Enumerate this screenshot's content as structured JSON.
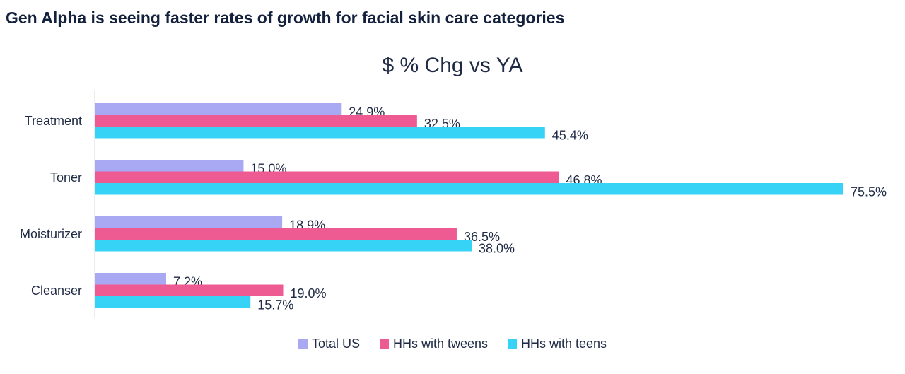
{
  "headline": "Gen Alpha is seeing faster rates of growth for facial skin care categories",
  "chart_data": {
    "type": "bar",
    "orientation": "horizontal",
    "title": "$ % Chg vs YA",
    "categories": [
      "Treatment",
      "Toner",
      "Moisturizer",
      "Cleanser"
    ],
    "series": [
      {
        "name": "Total US",
        "color": "#a9a8f2",
        "values": [
          24.9,
          15.0,
          18.9,
          7.2
        ],
        "labels": [
          "24.9%",
          "15.0%",
          "18.9%",
          "7.2%"
        ]
      },
      {
        "name": "HHs with tweens",
        "color": "#ee5b93",
        "values": [
          32.5,
          46.8,
          36.5,
          19.0
        ],
        "labels": [
          "32.5%",
          "46.8%",
          "36.5%",
          "19.0%"
        ]
      },
      {
        "name": "HHs with teens",
        "color": "#36d3f7",
        "values": [
          45.4,
          75.5,
          38.0,
          15.7
        ],
        "labels": [
          "45.4%",
          "75.5%",
          "38.0%",
          "15.7%"
        ]
      }
    ],
    "xlim": [
      0,
      75.5
    ],
    "grid": false,
    "legend_position": "bottom"
  }
}
